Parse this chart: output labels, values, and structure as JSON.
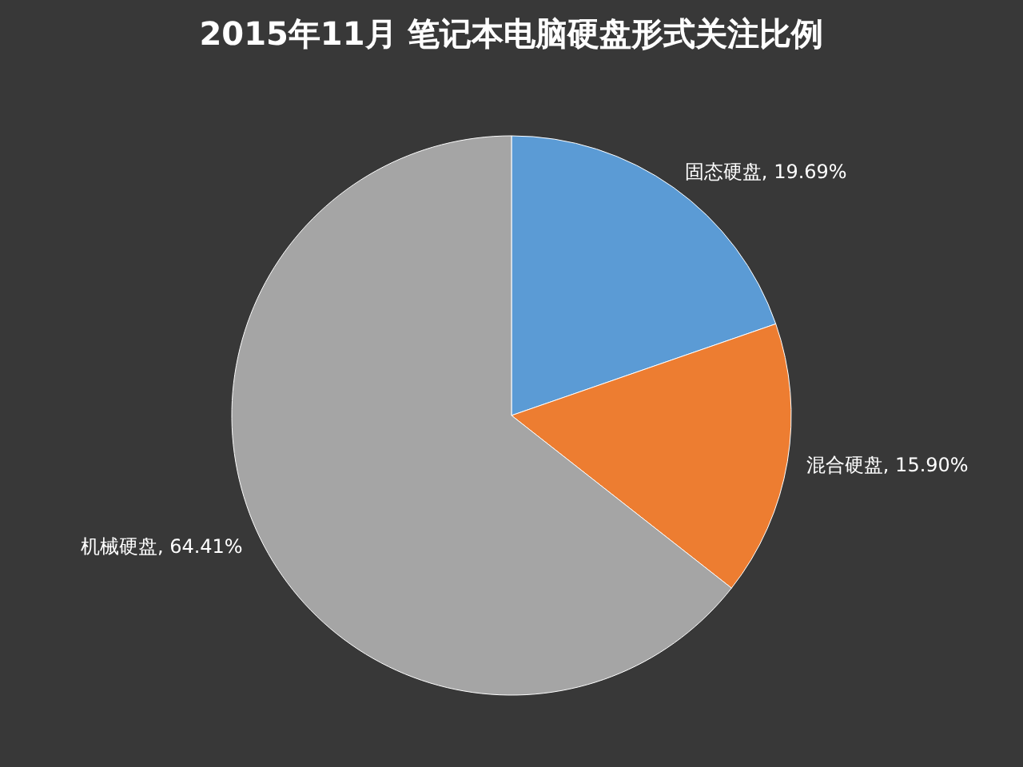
{
  "chart_data": {
    "type": "pie",
    "title": "2015年11月  笔记本电脑硬盘形式关注比例",
    "categories": [
      "固态硬盘",
      "混合硬盘",
      "机械硬盘"
    ],
    "values": [
      19.69,
      15.9,
      64.41
    ],
    "value_labels": [
      "19.69%",
      "15.90%",
      "64.41%"
    ],
    "colors": [
      "#5b9bd5",
      "#ed7d31",
      "#a5a5a5"
    ],
    "legend": false
  }
}
